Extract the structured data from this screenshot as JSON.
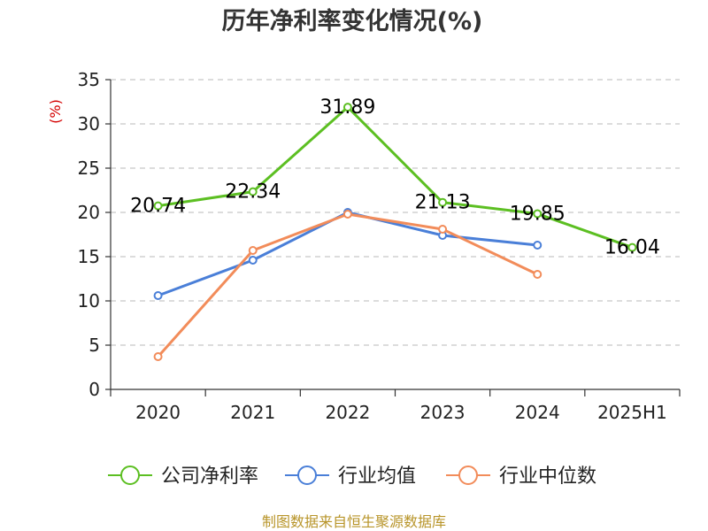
{
  "chart_data": {
    "type": "line",
    "title": "历年净利率变化情况(%)",
    "ylabel": "(%)",
    "xlabel": "",
    "categories": [
      "2020",
      "2021",
      "2022",
      "2023",
      "2024",
      "2025H1"
    ],
    "ylim": [
      0,
      35
    ],
    "yticks": [
      0,
      5,
      10,
      15,
      20,
      25,
      30,
      35
    ],
    "grid": "horizontal-dashed",
    "legend_position": "bottom",
    "series": [
      {
        "name": "公司净利率",
        "color": "#5cbf22",
        "values": [
          20.74,
          22.34,
          31.89,
          21.13,
          19.85,
          16.04
        ],
        "labels": [
          "20.74",
          "22.34",
          "31.89",
          "21.13",
          "19.85",
          "16.04"
        ]
      },
      {
        "name": "行业均值",
        "color": "#4a7fd8",
        "values": [
          10.6,
          14.6,
          20.0,
          17.4,
          16.3,
          null
        ]
      },
      {
        "name": "行业中位数",
        "color": "#f28c5a",
        "values": [
          3.7,
          15.7,
          19.8,
          18.1,
          13.0,
          null
        ]
      }
    ]
  },
  "source": "制图数据来自恒生聚源数据库"
}
